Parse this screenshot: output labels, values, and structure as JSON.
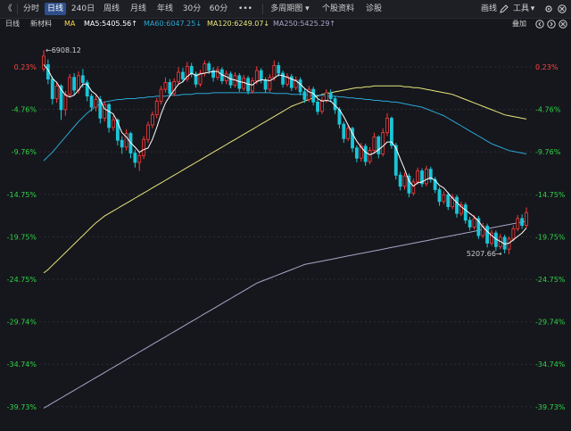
{
  "toolbar": {
    "back_glyph": "《",
    "items": [
      {
        "label": "分时",
        "active": false
      },
      {
        "label": "日线",
        "active": true
      },
      {
        "label": "240日",
        "active": false
      },
      {
        "label": "周线",
        "active": false
      },
      {
        "label": "月线",
        "active": false
      },
      {
        "label": "年线",
        "active": false
      },
      {
        "label": "30分",
        "active": false
      },
      {
        "label": "60分",
        "active": false
      },
      {
        "label": "•••",
        "active": false
      },
      {
        "label": "多周期图 ▾",
        "active": false
      },
      {
        "label": "个股资料",
        "active": false
      },
      {
        "label": "诊股",
        "active": false
      }
    ],
    "right": {
      "draw_label": "画线",
      "tools_label": "工具",
      "tools_arrow": "▾"
    }
  },
  "info": {
    "period": "日线",
    "name": "新材料",
    "ma_label": "MA",
    "ma5": "MA5:5405.56↑",
    "ma60": "MA60:6047.25↓",
    "ma120": "MA120:6249.07↓",
    "ma250": "MA250:5425.29↑",
    "overlay_label": "叠加"
  },
  "colors": {
    "up": "#ff3b3b",
    "down": "#19c6d8",
    "ma5": "#ffffff",
    "ma60": "#2aa7d6",
    "ma120": "#e8e67c",
    "ma250": "#a9a5c8",
    "green_axis": "#2fd34a",
    "red_axis": "#ff4444"
  },
  "chart_data": {
    "type": "candlestick",
    "y_axis_unit": "%",
    "y_axis_ticks": [
      "0.23%",
      "-4.76%",
      "-9.76%",
      "-14.75%",
      "-19.75%",
      "-24.75%",
      "-29.74%",
      "-34.74%",
      "-39.73%"
    ],
    "y_tick_values": [
      0.23,
      -4.76,
      -9.76,
      -14.75,
      -19.75,
      -24.75,
      -29.74,
      -34.74,
      -39.73
    ],
    "ylim": [
      -40.0,
      3.0
    ],
    "annotations": {
      "high_label": "←6908.12",
      "low_label": "5207.66→",
      "high_index": 0,
      "low_index": 106
    },
    "candles": [
      [
        0.0,
        1.5,
        -0.3,
        2.2
      ],
      [
        0.5,
        -1.2,
        -1.8,
        1.1
      ],
      [
        -1.2,
        -3.5,
        -4.2,
        -0.9
      ],
      [
        -3.5,
        -2.0,
        -4.0,
        -1.5
      ],
      [
        -2.0,
        -4.8,
        -6.0,
        -1.8
      ],
      [
        -4.8,
        -3.0,
        -5.5,
        -2.6
      ],
      [
        -3.0,
        -1.0,
        -3.4,
        -0.6
      ],
      [
        -1.0,
        -2.5,
        -3.0,
        -0.5
      ],
      [
        -2.5,
        -0.8,
        -2.9,
        -0.3
      ],
      [
        -0.8,
        -1.6,
        -2.2,
        0.0
      ],
      [
        -1.6,
        -3.2,
        -3.8,
        -1.3
      ],
      [
        -3.2,
        -4.5,
        -5.0,
        -2.9
      ],
      [
        -4.5,
        -3.6,
        -5.0,
        -3.1
      ],
      [
        -3.6,
        -5.8,
        -6.4,
        -3.2
      ],
      [
        -5.8,
        -4.2,
        -6.2,
        -3.8
      ],
      [
        -4.2,
        -6.9,
        -7.5,
        -4.0
      ],
      [
        -6.9,
        -6.0,
        -7.3,
        -5.5
      ],
      [
        -6.0,
        -8.4,
        -9.0,
        -5.8
      ],
      [
        -8.4,
        -9.2,
        -10.0,
        -7.9
      ],
      [
        -9.2,
        -7.6,
        -9.6,
        -7.1
      ],
      [
        -7.6,
        -9.9,
        -10.5,
        -7.4
      ],
      [
        -9.9,
        -11.0,
        -11.6,
        -9.5
      ],
      [
        -11.0,
        -10.2,
        -12.0,
        -9.8
      ],
      [
        -10.2,
        -8.3,
        -10.6,
        -7.9
      ],
      [
        -8.3,
        -6.6,
        -8.7,
        -6.2
      ],
      [
        -6.6,
        -5.4,
        -7.0,
        -5.0
      ],
      [
        -5.4,
        -3.8,
        -5.8,
        -3.4
      ],
      [
        -3.8,
        -2.4,
        -4.2,
        -2.0
      ],
      [
        -2.4,
        -1.6,
        -2.8,
        -1.0
      ],
      [
        -1.6,
        -2.9,
        -3.3,
        -1.2
      ],
      [
        -2.9,
        -1.5,
        -3.2,
        -1.1
      ],
      [
        -1.5,
        -0.4,
        -1.9,
        0.2
      ],
      [
        -0.4,
        -1.2,
        -1.6,
        0.1
      ],
      [
        -1.2,
        0.3,
        -1.5,
        0.8
      ],
      [
        0.3,
        -0.6,
        -1.0,
        0.7
      ],
      [
        -0.6,
        -1.8,
        -2.2,
        -0.3
      ],
      [
        -1.8,
        -0.5,
        -2.1,
        -0.1
      ],
      [
        -0.5,
        0.6,
        -0.9,
        1.0
      ],
      [
        0.6,
        -0.2,
        -0.6,
        0.9
      ],
      [
        -0.2,
        -1.0,
        -1.5,
        0.2
      ],
      [
        -1.0,
        -0.1,
        -1.3,
        0.3
      ],
      [
        -0.1,
        -1.4,
        -1.8,
        0.2
      ],
      [
        -1.4,
        -0.6,
        -1.8,
        -0.2
      ],
      [
        -0.6,
        -1.9,
        -2.3,
        -0.3
      ],
      [
        -1.9,
        -0.8,
        -2.2,
        -0.4
      ],
      [
        -0.8,
        -2.3,
        -2.7,
        -0.5
      ],
      [
        -2.3,
        -1.1,
        -2.6,
        -0.7
      ],
      [
        -1.1,
        -2.6,
        -3.0,
        -0.8
      ],
      [
        -2.6,
        -1.4,
        -2.9,
        -1.0
      ],
      [
        -1.4,
        -0.2,
        -1.8,
        0.3
      ],
      [
        -0.2,
        -1.3,
        -1.7,
        0.1
      ],
      [
        -1.3,
        -2.4,
        -2.8,
        -1.0
      ],
      [
        -2.4,
        -1.0,
        -2.7,
        -0.6
      ],
      [
        -1.0,
        0.4,
        -1.4,
        1.0
      ],
      [
        0.4,
        -0.5,
        -0.9,
        0.8
      ],
      [
        -0.5,
        -1.8,
        -2.2,
        -0.2
      ],
      [
        -1.8,
        -0.9,
        -2.1,
        -0.5
      ],
      [
        -0.9,
        -2.2,
        -2.6,
        -0.6
      ],
      [
        -2.2,
        -1.3,
        -2.5,
        -0.9
      ],
      [
        -1.3,
        -2.7,
        -3.1,
        -1.0
      ],
      [
        -2.7,
        -3.6,
        -4.0,
        -2.3
      ],
      [
        -3.6,
        -2.4,
        -3.9,
        -2.0
      ],
      [
        -2.4,
        -3.9,
        -4.3,
        -2.1
      ],
      [
        -3.9,
        -5.0,
        -5.4,
        -3.5
      ],
      [
        -5.0,
        -3.7,
        -5.3,
        -3.3
      ],
      [
        -3.7,
        -2.8,
        -4.0,
        -2.4
      ],
      [
        -2.8,
        -3.5,
        -3.9,
        -2.4
      ],
      [
        -3.5,
        -4.8,
        -5.3,
        -3.2
      ],
      [
        -4.8,
        -6.5,
        -7.0,
        -4.5
      ],
      [
        -6.5,
        -8.2,
        -8.7,
        -6.2
      ],
      [
        -8.2,
        -7.0,
        -8.5,
        -6.6
      ],
      [
        -7.0,
        -9.3,
        -9.8,
        -6.8
      ],
      [
        -9.3,
        -10.5,
        -11.0,
        -9.0
      ],
      [
        -10.5,
        -9.1,
        -10.9,
        -8.7
      ],
      [
        -9.1,
        -10.9,
        -11.4,
        -8.8
      ],
      [
        -10.9,
        -9.6,
        -11.2,
        -9.2
      ],
      [
        -9.6,
        -8.0,
        -9.9,
        -7.5
      ],
      [
        -8.0,
        -10.0,
        -10.5,
        -7.8
      ],
      [
        -10.0,
        -7.5,
        -10.3,
        -7.0
      ],
      [
        -7.5,
        -5.8,
        -7.9,
        -5.2
      ],
      [
        -5.8,
        -9.0,
        -9.4,
        -5.6
      ],
      [
        -9.0,
        -12.5,
        -13.0,
        -8.7
      ],
      [
        -12.5,
        -13.8,
        -14.3,
        -12.1
      ],
      [
        -13.8,
        -12.6,
        -14.2,
        -12.2
      ],
      [
        -12.6,
        -14.6,
        -15.1,
        -12.3
      ],
      [
        -14.6,
        -13.3,
        -14.9,
        -12.9
      ],
      [
        -13.3,
        -12.0,
        -13.6,
        -11.6
      ],
      [
        -12.0,
        -13.5,
        -13.9,
        -11.7
      ],
      [
        -13.5,
        -11.8,
        -13.8,
        -11.4
      ],
      [
        -11.8,
        -13.0,
        -13.4,
        -11.5
      ],
      [
        -13.0,
        -14.2,
        -14.6,
        -12.7
      ],
      [
        -14.2,
        -15.6,
        -16.1,
        -13.9
      ],
      [
        -15.6,
        -14.8,
        -15.9,
        -14.4
      ],
      [
        -14.8,
        -16.2,
        -16.6,
        -14.5
      ],
      [
        -16.2,
        -15.1,
        -16.5,
        -14.7
      ],
      [
        -15.1,
        -17.0,
        -17.5,
        -14.8
      ],
      [
        -17.0,
        -16.0,
        -17.3,
        -15.6
      ],
      [
        -16.0,
        -17.8,
        -18.2,
        -15.7
      ],
      [
        -17.8,
        -18.6,
        -19.0,
        -17.4
      ],
      [
        -18.6,
        -17.6,
        -18.9,
        -17.2
      ],
      [
        -17.6,
        -19.6,
        -20.0,
        -17.3
      ],
      [
        -19.6,
        -18.5,
        -19.9,
        -18.1
      ],
      [
        -18.5,
        -20.5,
        -21.0,
        -18.2
      ],
      [
        -20.5,
        -19.3,
        -20.8,
        -18.9
      ],
      [
        -19.3,
        -20.9,
        -21.4,
        -19.0
      ],
      [
        -20.9,
        -19.8,
        -21.2,
        -19.4
      ],
      [
        -19.8,
        -21.2,
        -21.7,
        -19.5
      ],
      [
        -21.2,
        -20.0,
        -21.8,
        -19.7
      ],
      [
        -20.0,
        -18.8,
        -20.3,
        -18.4
      ],
      [
        -18.8,
        -17.6,
        -19.1,
        -17.2
      ],
      [
        -17.6,
        -18.4,
        -18.8,
        -17.1
      ],
      [
        -18.4,
        -16.9,
        -18.7,
        -16.3
      ]
    ],
    "ma5": [
      0.5,
      -0.1,
      -1.1,
      -1.6,
      -2.4,
      -3.1,
      -3.3,
      -3.1,
      -2.5,
      -1.8,
      -1.8,
      -2.6,
      -3.0,
      -3.7,
      -4.7,
      -5.0,
      -5.3,
      -6.3,
      -7.5,
      -8.0,
      -8.7,
      -9.2,
      -9.8,
      -9.5,
      -9.3,
      -8.3,
      -6.9,
      -5.3,
      -4.0,
      -3.2,
      -2.5,
      -1.8,
      -1.5,
      -0.9,
      -0.5,
      -0.8,
      -0.6,
      -0.5,
      -0.4,
      -0.3,
      -0.3,
      -0.7,
      -0.9,
      -1.2,
      -1.3,
      -1.5,
      -1.6,
      -1.8,
      -1.9,
      -1.5,
      -1.3,
      -1.3,
      -1.4,
      -1.1,
      -0.7,
      -0.8,
      -1.0,
      -1.2,
      -1.4,
      -1.8,
      -2.3,
      -2.7,
      -2.9,
      -3.5,
      -3.8,
      -3.7,
      -3.8,
      -4.3,
      -4.8,
      -5.6,
      -6.6,
      -7.6,
      -8.5,
      -9.2,
      -9.8,
      -10.1,
      -9.9,
      -9.5,
      -9.1,
      -8.6,
      -8.6,
      -9.3,
      -10.6,
      -11.8,
      -13.2,
      -13.8,
      -13.4,
      -13.3,
      -13.0,
      -12.8,
      -13.1,
      -13.7,
      -14.0,
      -14.6,
      -15.2,
      -15.7,
      -16.2,
      -16.6,
      -17.0,
      -17.4,
      -17.9,
      -18.6,
      -19.1,
      -19.6,
      -20.0,
      -20.3,
      -20.6,
      -20.5,
      -20.1,
      -19.7,
      -19.3,
      -18.7
    ],
    "ma60": [
      -10.8,
      -10.3,
      -9.8,
      -9.2,
      -8.6,
      -8.0,
      -7.4,
      -6.8,
      -6.2,
      -5.7,
      -5.2,
      -4.8,
      -4.4,
      -4.1,
      -3.9,
      -3.8,
      -3.7,
      -3.6,
      -3.6,
      -3.5,
      -3.5,
      -3.5,
      -3.4,
      -3.4,
      -3.3,
      -3.3,
      -3.2,
      -3.2,
      -3.2,
      -3.1,
      -3.1,
      -3.1,
      -3.0,
      -3.0,
      -3.0,
      -2.9,
      -2.9,
      -2.9,
      -2.9,
      -2.8,
      -2.8,
      -2.8,
      -2.8,
      -2.8,
      -2.8,
      -2.8,
      -2.8,
      -2.8,
      -2.8,
      -2.8,
      -2.8,
      -2.8,
      -2.8,
      -2.9,
      -2.9,
      -2.9,
      -2.9,
      -3.0,
      -3.0,
      -3.0,
      -3.0,
      -3.1,
      -3.1,
      -3.1,
      -3.1,
      -3.2,
      -3.2,
      -3.2,
      -3.3,
      -3.3,
      -3.4,
      -3.4,
      -3.5,
      -3.5,
      -3.6,
      -3.6,
      -3.7,
      -3.7,
      -3.8,
      -3.8,
      -3.9,
      -3.9,
      -4.0,
      -4.1,
      -4.2,
      -4.3,
      -4.4,
      -4.5,
      -4.7,
      -4.9,
      -5.1,
      -5.3,
      -5.5,
      -5.8,
      -6.1,
      -6.4,
      -6.7,
      -7.0,
      -7.3,
      -7.6,
      -7.9,
      -8.2,
      -8.5,
      -8.8,
      -9.0,
      -9.2,
      -9.4,
      -9.6,
      -9.7,
      -9.8,
      -9.9,
      -10.0
    ],
    "ma120": [
      -24.0,
      -23.6,
      -23.1,
      -22.6,
      -22.1,
      -21.6,
      -21.1,
      -20.6,
      -20.1,
      -19.6,
      -19.1,
      -18.6,
      -18.1,
      -17.7,
      -17.3,
      -17.0,
      -16.7,
      -16.4,
      -16.1,
      -15.8,
      -15.5,
      -15.2,
      -14.9,
      -14.6,
      -14.3,
      -14.0,
      -13.7,
      -13.4,
      -13.1,
      -12.8,
      -12.5,
      -12.2,
      -11.9,
      -11.6,
      -11.3,
      -11.0,
      -10.7,
      -10.4,
      -10.1,
      -9.8,
      -9.5,
      -9.2,
      -8.9,
      -8.6,
      -8.3,
      -8.0,
      -7.7,
      -7.4,
      -7.1,
      -6.8,
      -6.5,
      -6.2,
      -5.9,
      -5.6,
      -5.3,
      -5.0,
      -4.7,
      -4.4,
      -4.2,
      -4.0,
      -3.8,
      -3.6,
      -3.4,
      -3.2,
      -3.0,
      -2.9,
      -2.8,
      -2.7,
      -2.6,
      -2.5,
      -2.4,
      -2.3,
      -2.2,
      -2.2,
      -2.1,
      -2.1,
      -2.0,
      -2.0,
      -2.0,
      -2.0,
      -2.0,
      -2.0,
      -2.0,
      -2.1,
      -2.1,
      -2.2,
      -2.2,
      -2.3,
      -2.4,
      -2.5,
      -2.6,
      -2.7,
      -2.8,
      -2.9,
      -3.0,
      -3.2,
      -3.4,
      -3.6,
      -3.8,
      -4.0,
      -4.2,
      -4.4,
      -4.6,
      -4.8,
      -5.0,
      -5.2,
      -5.4,
      -5.5,
      -5.6,
      -5.7,
      -5.8,
      -5.9
    ],
    "ma250": [
      -39.9,
      -39.6,
      -39.3,
      -39.0,
      -38.7,
      -38.4,
      -38.1,
      -37.8,
      -37.5,
      -37.2,
      -36.9,
      -36.6,
      -36.3,
      -36.0,
      -35.7,
      -35.4,
      -35.1,
      -34.8,
      -34.5,
      -34.2,
      -33.9,
      -33.6,
      -33.3,
      -33.0,
      -32.7,
      -32.4,
      -32.1,
      -31.8,
      -31.5,
      -31.2,
      -30.9,
      -30.6,
      -30.3,
      -30.0,
      -29.7,
      -29.4,
      -29.1,
      -28.8,
      -28.5,
      -28.2,
      -27.9,
      -27.6,
      -27.3,
      -27.0,
      -26.7,
      -26.4,
      -26.1,
      -25.8,
      -25.5,
      -25.2,
      -25.0,
      -24.8,
      -24.6,
      -24.4,
      -24.2,
      -24.0,
      -23.8,
      -23.6,
      -23.4,
      -23.2,
      -23.0,
      -22.9,
      -22.8,
      -22.7,
      -22.6,
      -22.5,
      -22.4,
      -22.3,
      -22.2,
      -22.1,
      -22.0,
      -21.9,
      -21.8,
      -21.7,
      -21.6,
      -21.5,
      -21.4,
      -21.3,
      -21.2,
      -21.1,
      -21.0,
      -20.9,
      -20.8,
      -20.7,
      -20.6,
      -20.5,
      -20.4,
      -20.3,
      -20.2,
      -20.1,
      -20.0,
      -19.9,
      -19.8,
      -19.7,
      -19.6,
      -19.5,
      -19.4,
      -19.3,
      -19.2,
      -19.1,
      -19.0,
      -18.9,
      -18.8,
      -18.7,
      -18.6,
      -18.5,
      -18.4,
      -18.3,
      -18.2,
      -18.1,
      -18.0,
      -17.9
    ]
  }
}
